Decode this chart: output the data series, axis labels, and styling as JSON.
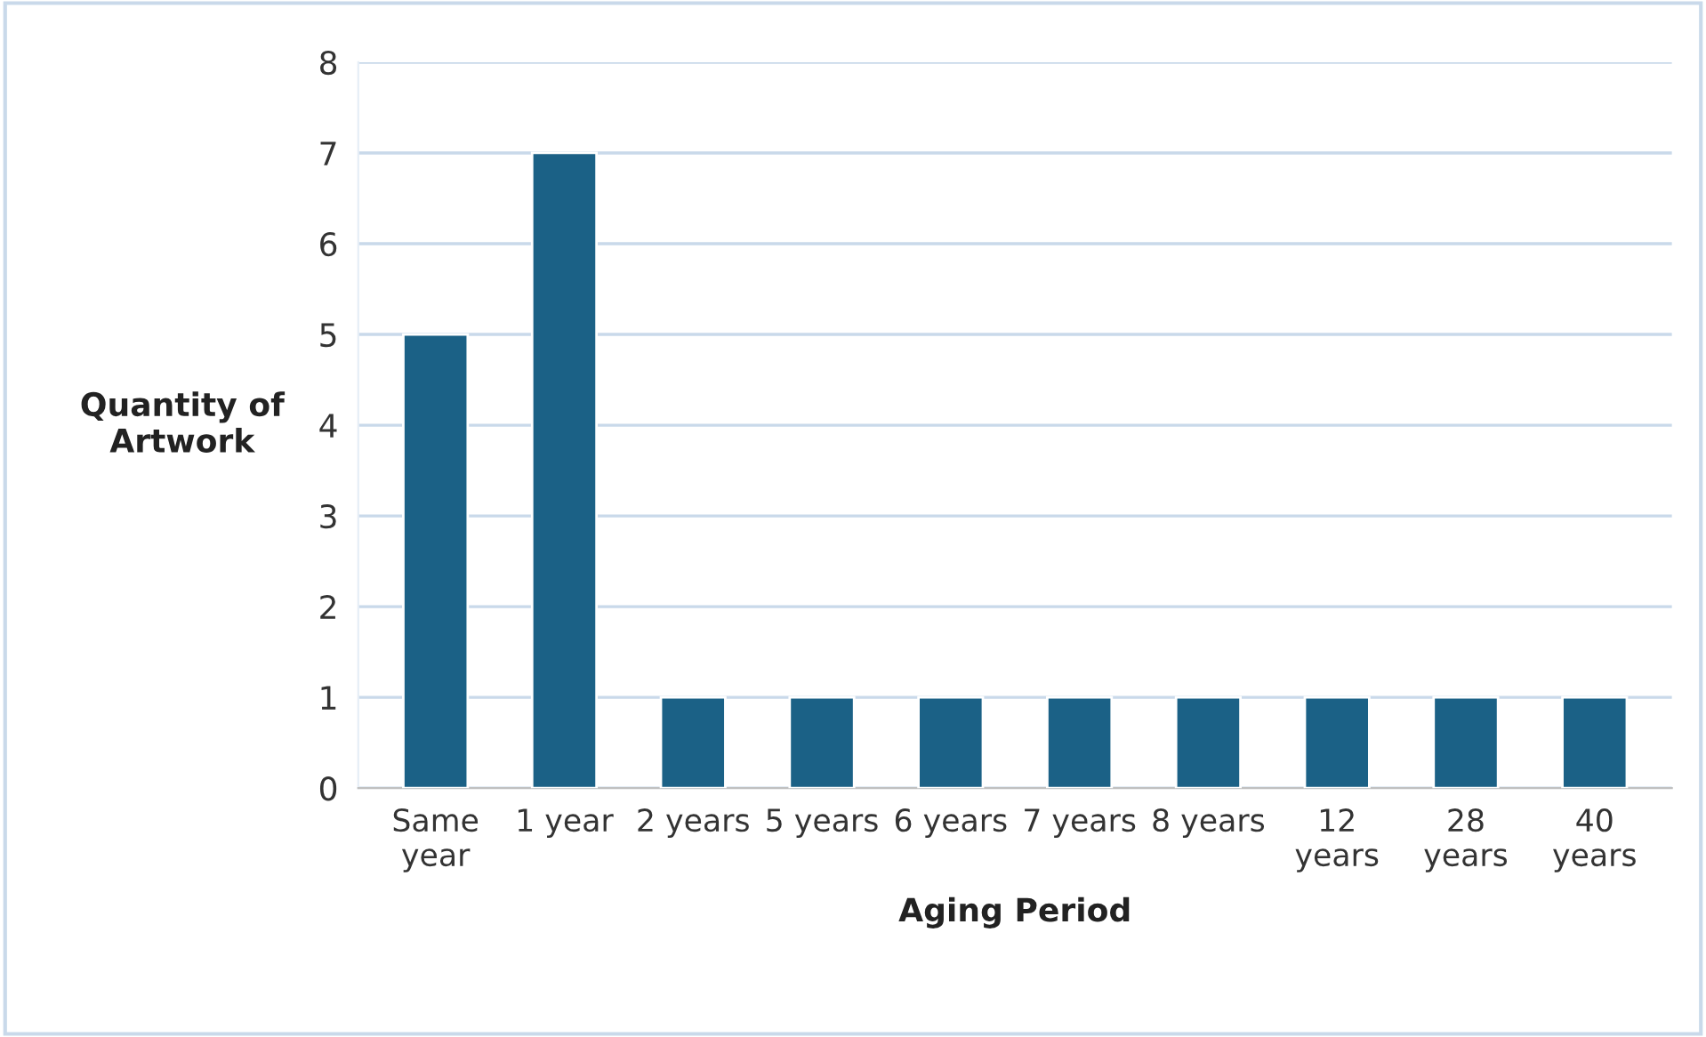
{
  "chart_data": {
    "type": "bar",
    "xlabel": "Aging Period",
    "ylabel": "Quantity of\nArtwork",
    "categories": [
      "Same\nyear",
      "1 year",
      "2 years",
      "5 years",
      "6 years",
      "7 years",
      "8 years",
      "12\nyears",
      "28\nyears",
      "40\nyears"
    ],
    "values": [
      5,
      7,
      1,
      1,
      1,
      1,
      1,
      1,
      1,
      1
    ],
    "color": "#1b6186",
    "ylim": [
      0,
      8
    ],
    "yticks": [
      0,
      1,
      2,
      3,
      4,
      5,
      6,
      7,
      8
    ],
    "grid": "y"
  }
}
